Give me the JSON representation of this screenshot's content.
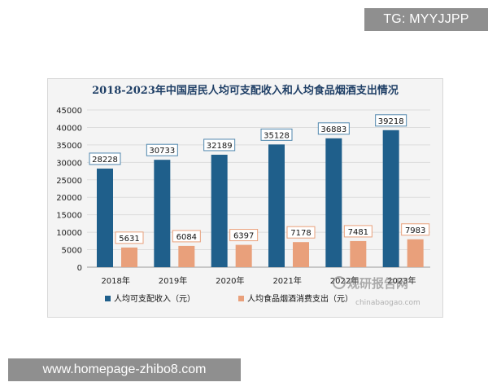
{
  "overlay": {
    "top_badge": "TG: MYYJJPP",
    "bottom_badge": "www.homepage-zhibo8.com"
  },
  "watermark": {
    "brand": "观研报告网",
    "url": "chinabaogao.com"
  },
  "colors": {
    "income": "#1f5f8b",
    "tobacco": "#e9a07b",
    "title": "#1f3f66",
    "label_border": "#4f86ad"
  },
  "chart_data": {
    "type": "bar",
    "title": "2018-2023年中国居民人均可支配收入和人均食品烟酒支出情况",
    "categories": [
      "2018年",
      "2019年",
      "2020年",
      "2021年",
      "2022年",
      "2023年"
    ],
    "series": [
      {
        "name": "人均可支配收入（元）",
        "values": [
          28228,
          30733,
          32189,
          35128,
          36883,
          39218
        ]
      },
      {
        "name": "人均食品烟酒消费支出（元）",
        "values": [
          5631,
          6084,
          6397,
          7178,
          7481,
          7983
        ]
      }
    ],
    "ylim": [
      0,
      45000
    ],
    "yticks": [
      "0",
      "5000",
      "10000",
      "15000",
      "20000",
      "25000",
      "30000",
      "35000",
      "40000",
      "45000"
    ],
    "grid": true,
    "legend": "bottom",
    "data_labels": true
  }
}
